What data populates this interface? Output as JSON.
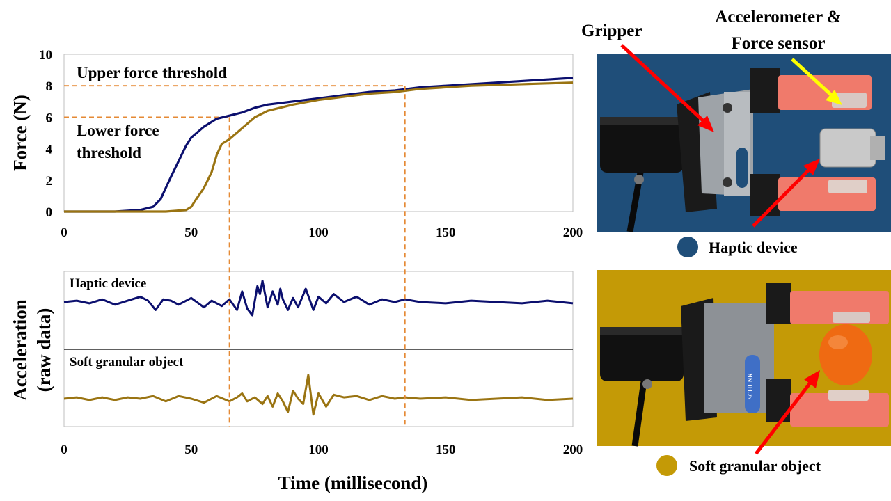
{
  "colors": {
    "haptic": "#0b0f6e",
    "soft": "#9a7412",
    "threshold": "#e58a35",
    "photo_top_bg": "#1f4e79",
    "photo_bottom_bg": "#c49a06",
    "arrow_red": "#ff0000",
    "arrow_yellow": "#ffff00"
  },
  "chart_data": [
    {
      "type": "line",
      "ylabel": "Force (N)",
      "xlabel": "Time (millisecond)",
      "xlim": [
        0,
        200
      ],
      "ylim": [
        0,
        10
      ],
      "xticks": [
        0,
        50,
        100,
        150,
        200
      ],
      "yticks": [
        0,
        2,
        4,
        6,
        8,
        10
      ],
      "grid": false,
      "annotations": {
        "upper": "Upper force threshold",
        "lower_line1": "Lower force",
        "lower_line2": "threshold"
      },
      "thresholds": [
        {
          "y": 8,
          "x_end": 134
        },
        {
          "y": 6,
          "x_end": 65
        }
      ],
      "series": [
        {
          "name": "Haptic device",
          "x": [
            0,
            20,
            30,
            35,
            38,
            40,
            42,
            45,
            48,
            50,
            55,
            60,
            65,
            70,
            75,
            80,
            90,
            100,
            110,
            120,
            130,
            140,
            150,
            160,
            170,
            180,
            190,
            200
          ],
          "y": [
            0,
            0,
            0.1,
            0.3,
            0.8,
            1.5,
            2.2,
            3.2,
            4.2,
            4.7,
            5.4,
            5.9,
            6.1,
            6.3,
            6.6,
            6.8,
            7.0,
            7.2,
            7.4,
            7.6,
            7.7,
            7.9,
            8.0,
            8.1,
            8.2,
            8.3,
            8.4,
            8.5
          ]
        },
        {
          "name": "Soft granular object",
          "x": [
            0,
            20,
            40,
            48,
            50,
            52,
            55,
            58,
            60,
            62,
            65,
            70,
            75,
            80,
            90,
            100,
            110,
            120,
            130,
            140,
            150,
            160,
            170,
            180,
            190,
            200
          ],
          "y": [
            0,
            0,
            0,
            0.1,
            0.3,
            0.8,
            1.5,
            2.5,
            3.6,
            4.3,
            4.6,
            5.3,
            6.0,
            6.4,
            6.8,
            7.1,
            7.3,
            7.5,
            7.6,
            7.8,
            7.9,
            8.0,
            8.05,
            8.1,
            8.15,
            8.2
          ]
        }
      ]
    },
    {
      "type": "line",
      "ylabel_line1": "Acceleration",
      "ylabel_line2": "(raw data)",
      "xlabel": "Time (millisecond)",
      "xlim": [
        0,
        200
      ],
      "xticks": [
        0,
        50,
        100,
        150,
        200
      ],
      "ylim": [
        -1,
        1
      ],
      "grid": false,
      "markers_x": [
        65,
        134
      ],
      "series": [
        {
          "name": "Haptic device",
          "x": [
            0,
            5,
            10,
            15,
            20,
            25,
            30,
            33,
            36,
            39,
            42,
            45,
            50,
            55,
            58,
            62,
            65,
            68,
            70,
            72,
            74,
            76,
            77,
            78,
            80,
            82,
            84,
            85,
            86,
            88,
            90,
            92,
            95,
            98,
            100,
            103,
            106,
            110,
            115,
            120,
            125,
            130,
            134,
            140,
            150,
            160,
            170,
            180,
            190,
            200
          ],
          "y": [
            0,
            0.05,
            -0.05,
            0.1,
            -0.1,
            0.05,
            0.2,
            0.05,
            -0.3,
            0.1,
            0.05,
            -0.1,
            0.15,
            -0.2,
            0.05,
            -0.15,
            0.1,
            -0.3,
            0.4,
            -0.25,
            -0.5,
            0.6,
            0.3,
            0.8,
            -0.2,
            0.4,
            -0.1,
            0.5,
            0.1,
            -0.3,
            0.15,
            -0.2,
            0.5,
            -0.3,
            0.2,
            -0.05,
            0.3,
            0.0,
            0.2,
            -0.1,
            0.1,
            0.0,
            0.1,
            0.0,
            -0.05,
            0.05,
            0.0,
            -0.05,
            0.05,
            -0.05
          ]
        },
        {
          "name": "Soft granular object",
          "x": [
            0,
            5,
            10,
            15,
            20,
            25,
            30,
            35,
            40,
            45,
            50,
            55,
            60,
            65,
            68,
            70,
            72,
            75,
            78,
            80,
            82,
            84,
            86,
            88,
            90,
            92,
            94,
            96,
            98,
            100,
            103,
            106,
            110,
            115,
            120,
            125,
            130,
            134,
            140,
            150,
            160,
            170,
            180,
            190,
            200
          ],
          "y": [
            0,
            0.05,
            -0.05,
            0.05,
            -0.05,
            0.05,
            0.0,
            0.1,
            -0.1,
            0.1,
            0.0,
            -0.15,
            0.1,
            -0.1,
            0.05,
            0.2,
            -0.1,
            0.05,
            -0.2,
            0.1,
            -0.3,
            0.2,
            -0.1,
            -0.5,
            0.3,
            0.0,
            -0.2,
            0.9,
            -0.6,
            0.2,
            -0.3,
            0.15,
            0.05,
            0.1,
            -0.05,
            0.1,
            0.0,
            0.05,
            0.0,
            0.05,
            -0.05,
            0.0,
            0.05,
            -0.05,
            0.0
          ]
        }
      ],
      "panel_labels": [
        "Haptic device",
        "Soft granular object"
      ]
    }
  ],
  "photos": {
    "top": {
      "label_gripper": "Gripper",
      "label_sensor_line1": "Accelerometer &",
      "label_sensor_line2": "Force sensor",
      "legend": "Haptic device"
    },
    "bottom": {
      "legend": "Soft granular object",
      "brand": "SCHUNK"
    }
  }
}
